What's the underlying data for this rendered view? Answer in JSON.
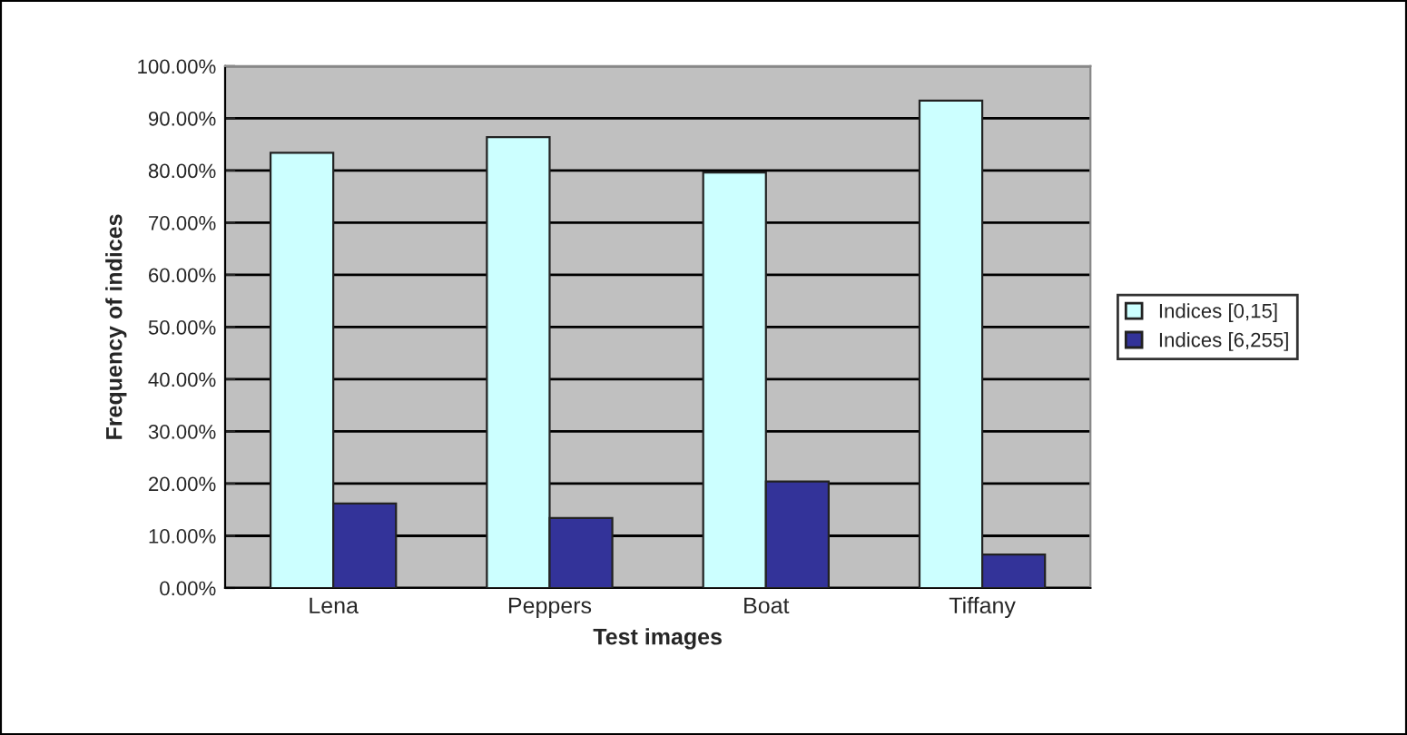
{
  "chart_data": {
    "type": "bar",
    "xlabel": "Test images",
    "ylabel": "Frequency of indices",
    "categories": [
      "Lena",
      "Peppers",
      "Boat",
      "Tiffany"
    ],
    "series": [
      {
        "name": "Indices [0,15]",
        "color": "#ccffff",
        "values": [
          83.4,
          86.4,
          79.6,
          93.4
        ]
      },
      {
        "name": "Indices [6,255]",
        "color": "#333399",
        "values": [
          16.2,
          13.4,
          20.4,
          6.4
        ]
      }
    ],
    "ylim": [
      0,
      100
    ],
    "yticks": [
      {
        "value": 0,
        "label": "0.00%"
      },
      {
        "value": 10,
        "label": "10.00%"
      },
      {
        "value": 20,
        "label": "20.00%"
      },
      {
        "value": 30,
        "label": "30.00%"
      },
      {
        "value": 40,
        "label": "40.00%"
      },
      {
        "value": 50,
        "label": "50.00%"
      },
      {
        "value": 60,
        "label": "60.00%"
      },
      {
        "value": 70,
        "label": "70.00%"
      },
      {
        "value": 80,
        "label": "80.00%"
      },
      {
        "value": 90,
        "label": "90.00%"
      },
      {
        "value": 100,
        "label": "100.00%"
      }
    ],
    "grid": "y",
    "legend": "right"
  }
}
